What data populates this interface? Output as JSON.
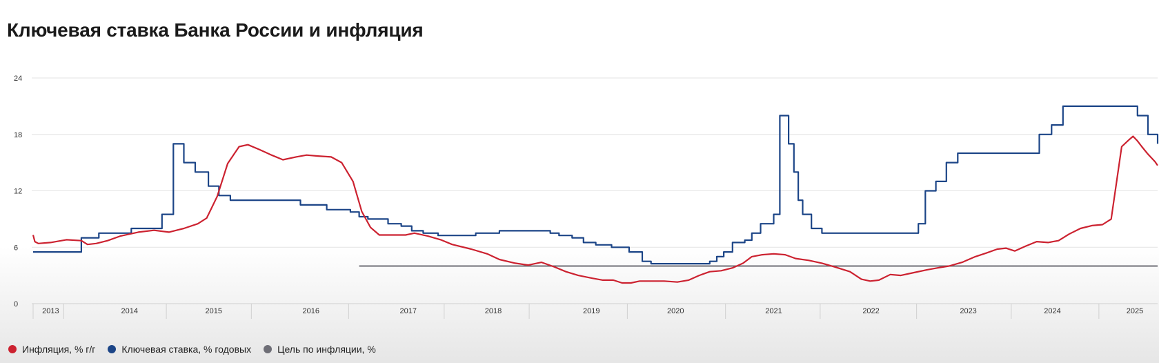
{
  "page": {
    "title": "Ключевая ставка Банка России и инфляция"
  },
  "chart_data": {
    "type": "line",
    "title": "Ключевая ставка Банка России и инфляция",
    "xlabel": "",
    "ylabel": "",
    "xlim": [
      2013.0,
      2025.83
    ],
    "ylim": [
      0,
      24
    ],
    "y_ticks": [
      "0",
      "6",
      "12",
      "18",
      "24"
    ],
    "x_ticks": [
      {
        "label": "2013",
        "x": 2013.2
      },
      {
        "label": "2014",
        "x": 2014.1
      },
      {
        "label": "2015",
        "x": 2015.06
      },
      {
        "label": "2016",
        "x": 2016.17
      },
      {
        "label": "2017",
        "x": 2017.28
      },
      {
        "label": "2018",
        "x": 2018.25
      },
      {
        "label": "2019",
        "x": 2019.37
      },
      {
        "label": "2020",
        "x": 2020.33
      },
      {
        "label": "2021",
        "x": 2021.45
      },
      {
        "label": "2022",
        "x": 2022.56
      },
      {
        "label": "2023",
        "x": 2023.67
      },
      {
        "label": "2024",
        "x": 2024.63
      },
      {
        "label": "2025",
        "x": 2025.57
      }
    ],
    "x_dividers": [
      2013.0,
      2013.35,
      2014.52,
      2015.49,
      2016.6,
      2017.69,
      2018.66,
      2019.78,
      2020.9,
      2021.98,
      2023.08,
      2024.16,
      2025.16
    ],
    "grid": true,
    "legend_position": "bottom-left",
    "series": [
      {
        "name": "Инфляция, % г/г",
        "color": "#cc2230",
        "step": false,
        "points": [
          [
            2013.0,
            7.3
          ],
          [
            2013.02,
            6.6
          ],
          [
            2013.06,
            6.4
          ],
          [
            2013.2,
            6.5
          ],
          [
            2013.38,
            6.8
          ],
          [
            2013.55,
            6.7
          ],
          [
            2013.62,
            6.3
          ],
          [
            2013.72,
            6.4
          ],
          [
            2013.85,
            6.7
          ],
          [
            2014.0,
            7.2
          ],
          [
            2014.2,
            7.6
          ],
          [
            2014.38,
            7.8
          ],
          [
            2014.55,
            7.6
          ],
          [
            2014.72,
            8.0
          ],
          [
            2014.88,
            8.5
          ],
          [
            2014.98,
            9.1
          ],
          [
            2015.1,
            11.4
          ],
          [
            2015.22,
            14.9
          ],
          [
            2015.35,
            16.7
          ],
          [
            2015.45,
            16.9
          ],
          [
            2015.58,
            16.4
          ],
          [
            2015.72,
            15.8
          ],
          [
            2015.85,
            15.3
          ],
          [
            2016.0,
            15.6
          ],
          [
            2016.12,
            15.8
          ],
          [
            2016.25,
            15.7
          ],
          [
            2016.4,
            15.6
          ],
          [
            2016.52,
            15.0
          ],
          [
            2016.65,
            13.0
          ],
          [
            2016.75,
            9.8
          ],
          [
            2016.85,
            8.1
          ],
          [
            2016.95,
            7.3
          ],
          [
            2017.1,
            7.3
          ],
          [
            2017.25,
            7.3
          ],
          [
            2017.35,
            7.5
          ],
          [
            2017.5,
            7.2
          ],
          [
            2017.65,
            6.8
          ],
          [
            2017.78,
            6.3
          ],
          [
            2018.0,
            5.8
          ],
          [
            2018.18,
            5.3
          ],
          [
            2018.32,
            4.7
          ],
          [
            2018.5,
            4.3
          ],
          [
            2018.65,
            4.1
          ],
          [
            2018.8,
            4.4
          ],
          [
            2018.95,
            3.9
          ],
          [
            2019.08,
            3.4
          ],
          [
            2019.22,
            3.0
          ],
          [
            2019.38,
            2.7
          ],
          [
            2019.5,
            2.5
          ],
          [
            2019.62,
            2.5
          ],
          [
            2019.72,
            2.2
          ],
          [
            2019.82,
            2.2
          ],
          [
            2019.92,
            2.4
          ],
          [
            2020.05,
            2.4
          ],
          [
            2020.2,
            2.4
          ],
          [
            2020.35,
            2.3
          ],
          [
            2020.48,
            2.5
          ],
          [
            2020.6,
            3.0
          ],
          [
            2020.72,
            3.4
          ],
          [
            2020.85,
            3.5
          ],
          [
            2020.98,
            3.8
          ],
          [
            2021.1,
            4.3
          ],
          [
            2021.2,
            5.0
          ],
          [
            2021.32,
            5.2
          ],
          [
            2021.45,
            5.3
          ],
          [
            2021.58,
            5.2
          ],
          [
            2021.7,
            4.8
          ],
          [
            2021.85,
            4.6
          ],
          [
            2022.0,
            4.3
          ],
          [
            2022.15,
            3.9
          ],
          [
            2022.32,
            3.4
          ],
          [
            2022.45,
            2.6
          ],
          [
            2022.55,
            2.4
          ],
          [
            2022.65,
            2.5
          ],
          [
            2022.78,
            3.1
          ],
          [
            2022.9,
            3.0
          ],
          [
            2023.05,
            3.3
          ],
          [
            2023.2,
            3.6
          ],
          [
            2023.32,
            3.8
          ],
          [
            2023.45,
            4.0
          ],
          [
            2023.6,
            4.4
          ],
          [
            2023.75,
            5.0
          ],
          [
            2023.88,
            5.4
          ],
          [
            2024.0,
            5.8
          ],
          [
            2024.1,
            5.9
          ],
          [
            2024.2,
            5.6
          ],
          [
            2024.32,
            6.1
          ],
          [
            2024.45,
            6.6
          ],
          [
            2024.58,
            6.5
          ],
          [
            2024.7,
            6.7
          ],
          [
            2024.82,
            7.4
          ],
          [
            2024.95,
            8.0
          ],
          [
            2025.08,
            8.3
          ],
          [
            2025.2,
            8.4
          ],
          [
            2025.3,
            9.0
          ],
          [
            2025.42,
            16.7
          ],
          [
            2025.5,
            17.4
          ],
          [
            2025.55,
            17.8
          ],
          [
            2025.6,
            17.3
          ],
          [
            2025.65,
            16.7
          ],
          [
            2025.72,
            15.9
          ],
          [
            2025.8,
            15.1
          ],
          [
            2025.83,
            14.7
          ]
        ]
      },
      {
        "name": "Ключевая ставка, % годовых",
        "color": "#1c4587",
        "step": true,
        "points": [
          [
            2013.0,
            5.5
          ],
          [
            2013.55,
            7.0
          ],
          [
            2013.75,
            7.5
          ],
          [
            2014.12,
            8.0
          ],
          [
            2014.47,
            9.5
          ],
          [
            2014.6,
            17.0
          ],
          [
            2014.72,
            15.0
          ],
          [
            2014.85,
            14.0
          ],
          [
            2015.0,
            12.5
          ],
          [
            2015.12,
            11.5
          ],
          [
            2015.25,
            11.0
          ],
          [
            2015.82,
            11.0
          ],
          [
            2016.05,
            10.5
          ],
          [
            2016.35,
            10.0
          ],
          [
            2016.55,
            10.0
          ],
          [
            2016.62,
            9.75
          ],
          [
            2016.72,
            9.25
          ],
          [
            2016.82,
            9.0
          ],
          [
            2017.05,
            8.5
          ],
          [
            2017.2,
            8.25
          ],
          [
            2017.32,
            7.75
          ],
          [
            2017.45,
            7.5
          ],
          [
            2017.62,
            7.25
          ],
          [
            2017.95,
            7.25
          ],
          [
            2018.05,
            7.5
          ],
          [
            2018.32,
            7.75
          ],
          [
            2018.55,
            7.75
          ],
          [
            2018.75,
            7.75
          ],
          [
            2018.9,
            7.5
          ],
          [
            2019.0,
            7.25
          ],
          [
            2019.15,
            7.0
          ],
          [
            2019.28,
            6.5
          ],
          [
            2019.42,
            6.25
          ],
          [
            2019.6,
            6.0
          ],
          [
            2019.8,
            5.5
          ],
          [
            2019.95,
            4.5
          ],
          [
            2020.05,
            4.25
          ],
          [
            2020.2,
            4.25
          ],
          [
            2020.5,
            4.25
          ],
          [
            2020.62,
            4.25
          ],
          [
            2020.72,
            4.5
          ],
          [
            2020.8,
            5.0
          ],
          [
            2020.88,
            5.5
          ],
          [
            2020.98,
            6.5
          ],
          [
            2021.12,
            6.75
          ],
          [
            2021.2,
            7.5
          ],
          [
            2021.3,
            8.5
          ],
          [
            2021.45,
            9.5
          ],
          [
            2021.52,
            20.0
          ],
          [
            2021.62,
            17.0
          ],
          [
            2021.68,
            14.0
          ],
          [
            2021.73,
            11.0
          ],
          [
            2021.78,
            9.5
          ],
          [
            2021.88,
            8.0
          ],
          [
            2022.0,
            7.5
          ],
          [
            2022.32,
            7.5
          ],
          [
            2022.55,
            7.5
          ],
          [
            2022.7,
            7.5
          ],
          [
            2022.85,
            7.5
          ],
          [
            2022.98,
            7.5
          ],
          [
            2023.1,
            8.5
          ],
          [
            2023.18,
            12.0
          ],
          [
            2023.3,
            13.0
          ],
          [
            2023.42,
            15.0
          ],
          [
            2023.55,
            16.0
          ],
          [
            2023.85,
            16.0
          ],
          [
            2024.2,
            16.0
          ],
          [
            2024.42,
            16.0
          ],
          [
            2024.48,
            18.0
          ],
          [
            2024.62,
            19.0
          ],
          [
            2024.75,
            21.0
          ],
          [
            2025.0,
            21.0
          ],
          [
            2025.32,
            21.0
          ],
          [
            2025.4,
            21.0
          ],
          [
            2025.6,
            20.0
          ],
          [
            2025.72,
            18.0
          ],
          [
            2025.83,
            17.0
          ]
        ]
      },
      {
        "name": "Цель по инфляции, %",
        "color": "#6e6e76",
        "step": false,
        "points": [
          [
            2016.72,
            4.0
          ],
          [
            2025.83,
            4.0
          ]
        ]
      }
    ]
  }
}
